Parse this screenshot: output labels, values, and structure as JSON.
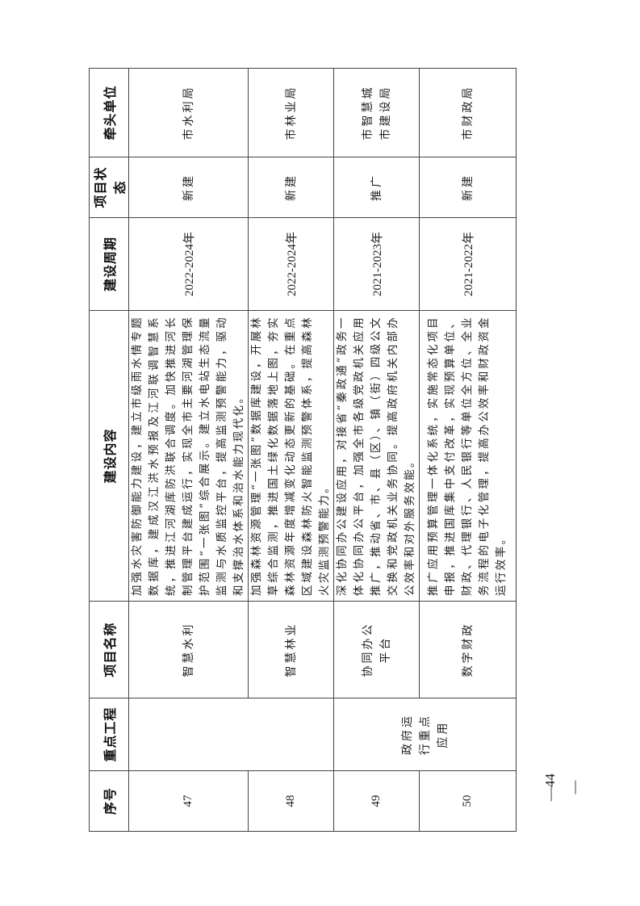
{
  "table": {
    "headers": [
      "序号",
      "重点工程",
      "项目名称",
      "建设内容",
      "建设周期",
      "项目状态",
      "牵头单位"
    ],
    "group_label": "政府运行重点应用",
    "rows": [
      {
        "no": "47",
        "name": "智慧水利",
        "content": "加强水灾害防御能力建设，建立市级雨水情专题数据库，建成汉江洪水预报及江河联调智慧系统，推进江河湖库防洪联合调度。加快推进河长制管理平台建成运行，实现全市主要河湖管理保护范围“一张图”综合展示。建立水电站生态流量监测与水质监控平台，提高监测预警能力，驱动和支撑治水体系和治水能力现代化。",
        "period": "2022-2024年",
        "status": "新建",
        "lead": "市水利局"
      },
      {
        "no": "48",
        "name": "智慧林业",
        "content": "加强森林资源管理“一张图”数据库建设，开展林草综合监测，推进国土绿化数据落地上图，夯实森林资源年度增减变化动态更新的基础。在重点区域建设森林防火智能监测预警体系，提高森林火灾监测预警能力。",
        "period": "2022-2024年",
        "status": "新建",
        "lead": "市林业局"
      },
      {
        "no": "49",
        "name": "协同办公平台",
        "content": "深化协同办公建设应用，对接省“秦政通”政务一体化协同办公平台，加强全市各级党政机关应用推广，推动省、市、县（区）、镇（街）四级公文交换和党政机关业务协同。提高政府机关内部办公效率和对外服务效能。",
        "period": "2021-2023年",
        "status": "推广",
        "lead": "市智慧城市建设局"
      },
      {
        "no": "50",
        "name": "数字财政",
        "content": "推广应用预算管理一体化系统，实施常态化项目申报，推进国库集中支付改革，实现预算单位、财政、代理银行、人民银行等单位全方位、全业务流程的电子化管理，提高办公效率和财政资金运行效率。",
        "period": "2021-2022年",
        "status": "新建",
        "lead": "市财政局"
      }
    ]
  },
  "page_number": "—44—"
}
